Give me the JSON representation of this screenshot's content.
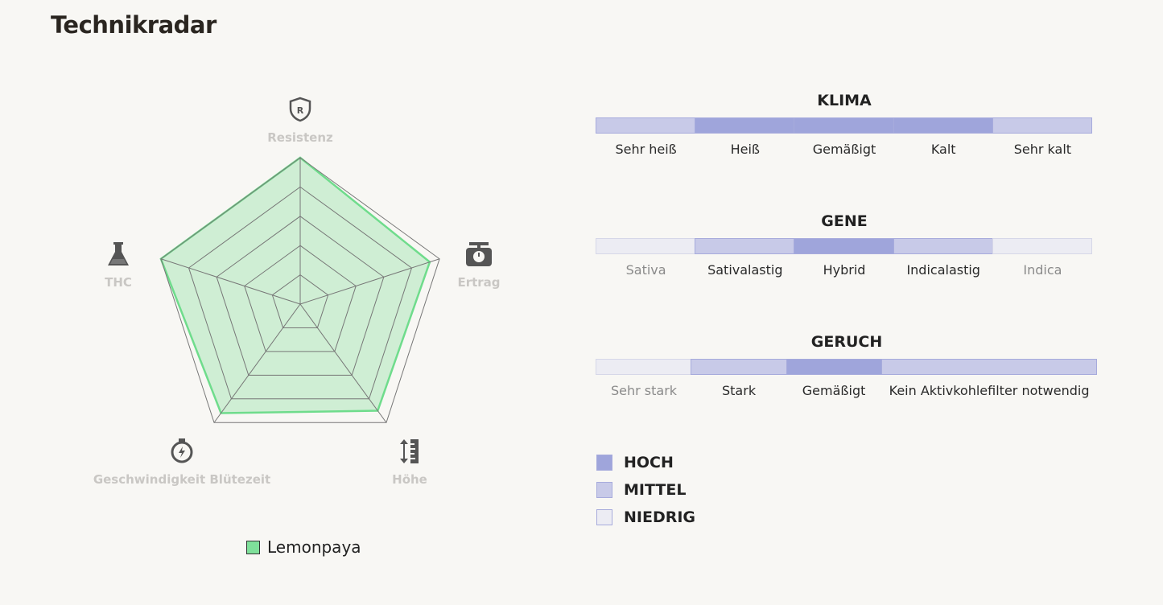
{
  "page_title": "Technikradar",
  "chart_data": [
    {
      "type": "radar",
      "axes": [
        "Resistenz",
        "Ertrag",
        "Höhe",
        "Geschwindigkeit Blütezeit",
        "THC"
      ],
      "axis_icons": [
        "shield-r-icon",
        "scale-icon",
        "ruler-arrows-icon",
        "stopwatch-icon",
        "flask-icon"
      ],
      "rlim": [
        0,
        100
      ],
      "rings": 5,
      "series": [
        {
          "name": "Lemonpaya",
          "values": [
            100,
            93,
            90,
            92,
            100
          ],
          "color": "#6fdc8c"
        }
      ],
      "legend": "bottom"
    }
  ],
  "groups": [
    {
      "title": "KLIMA",
      "items": [
        {
          "label": "Sehr heiß",
          "level": "mittel"
        },
        {
          "label": "Heiß",
          "level": "hoch"
        },
        {
          "label": "Gemäßigt",
          "level": "hoch"
        },
        {
          "label": "Kalt",
          "level": "hoch"
        },
        {
          "label": "Sehr kalt",
          "level": "mittel"
        }
      ]
    },
    {
      "title": "GENE",
      "items": [
        {
          "label": "Sativa",
          "level": "niedrig"
        },
        {
          "label": "Sativalastig",
          "level": "mittel"
        },
        {
          "label": "Hybrid",
          "level": "hoch"
        },
        {
          "label": "Indicalastig",
          "level": "mittel"
        },
        {
          "label": "Indica",
          "level": "niedrig"
        }
      ]
    },
    {
      "title": "GERUCH",
      "items": [
        {
          "label": "Sehr stark",
          "level": "niedrig"
        },
        {
          "label": "Stark",
          "level": "mittel"
        },
        {
          "label": "Gemäßigt",
          "level": "hoch"
        },
        {
          "label": "Kein Aktivkohlefilter notwendig",
          "level": "mittel"
        }
      ]
    }
  ],
  "level_key": [
    {
      "key": "hoch",
      "label": "HOCH",
      "color": "#9fa5db"
    },
    {
      "key": "mittel",
      "label": "MITTEL",
      "color": "#c8cae8"
    },
    {
      "key": "niedrig",
      "label": "NIEDRIG",
      "color": "#ececf3"
    }
  ]
}
